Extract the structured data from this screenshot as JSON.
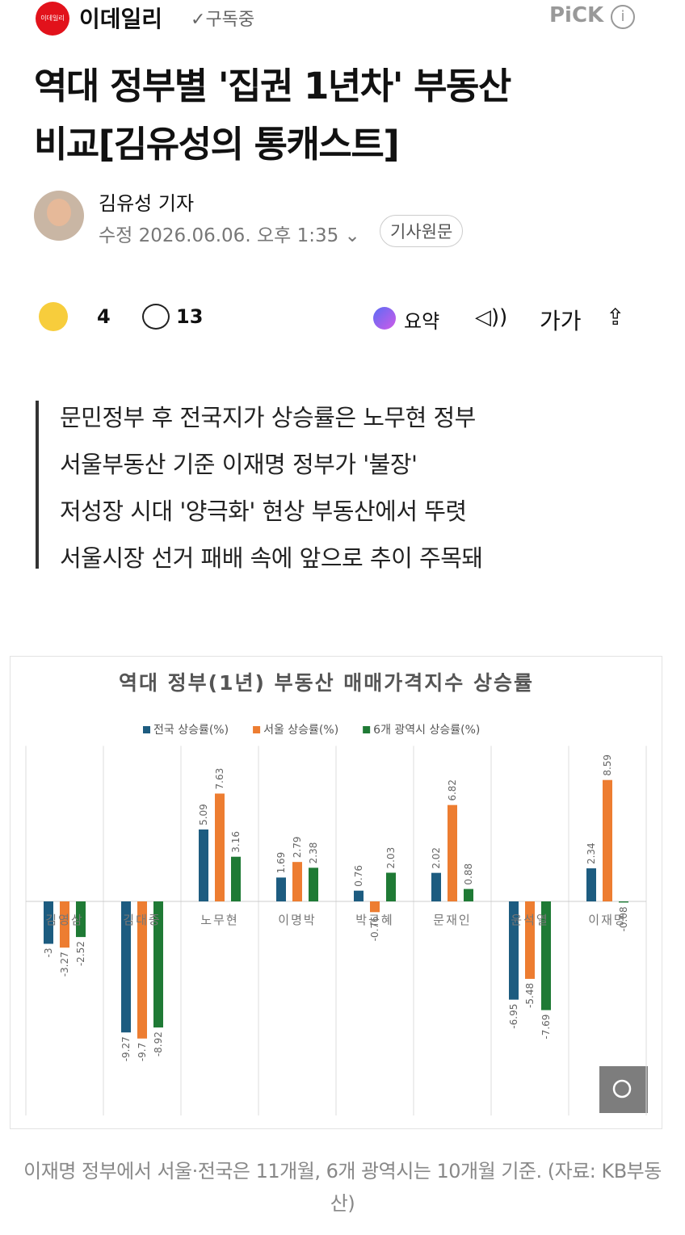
{
  "header": {
    "logo_text": "이데일리",
    "press_name": "이데일리",
    "subscribe": "구독중",
    "pick": "PiCK"
  },
  "article": {
    "title_lines": [
      "역대 정부별 '집권 1년차' 부동산",
      "비교[김유성의 통캐스트]"
    ],
    "author": "김유성 기자",
    "date": "수정 2026.06.06. 오후 1:35",
    "original_button": "기사원문",
    "reaction_count": "4",
    "comment_count": "13",
    "summary_button": "요약",
    "font_button": "가가",
    "summary_lines": [
      "문민정부 후 전국지가 상승률은 노무현 정부",
      "서울부동산 기준 이재명 정부가 '불장'",
      "저성장 시대 '양극화' 현상 부동산에서 뚜렷",
      "서울시장 선거 패배 속에 앞으로 추이 주목돼"
    ],
    "caption": "이재명 정부에서 서울·전국은 11개월, 6개 광역시는 10개월 기준. (자료: KB부동산)"
  },
  "chart_data": {
    "type": "bar",
    "title": "역대 정부(1년) 부동산 매매가격지수 상승률",
    "categories": [
      "김영삼",
      "김대중",
      "노무현",
      "이명박",
      "박근혜",
      "문재인",
      "윤석열",
      "이재명"
    ],
    "series": [
      {
        "name": "전국 상승률(%)",
        "color": "#1d5c80",
        "values": [
          -3,
          -9.27,
          5.09,
          1.69,
          0.76,
          2.02,
          -6.95,
          2.34
        ]
      },
      {
        "name": "서울 상승률(%)",
        "color": "#ed7d31",
        "values": [
          -3.27,
          -9.7,
          7.63,
          2.79,
          -0.76,
          6.82,
          -5.48,
          8.59
        ]
      },
      {
        "name": "6개 광역시 상승률(%)",
        "color": "#1f7a35",
        "values": [
          -2.52,
          -8.92,
          3.16,
          2.38,
          2.03,
          0.88,
          -7.69,
          -0.08
        ]
      }
    ],
    "ylim": [
      -14,
      11
    ],
    "legend": "top",
    "grid": true
  }
}
